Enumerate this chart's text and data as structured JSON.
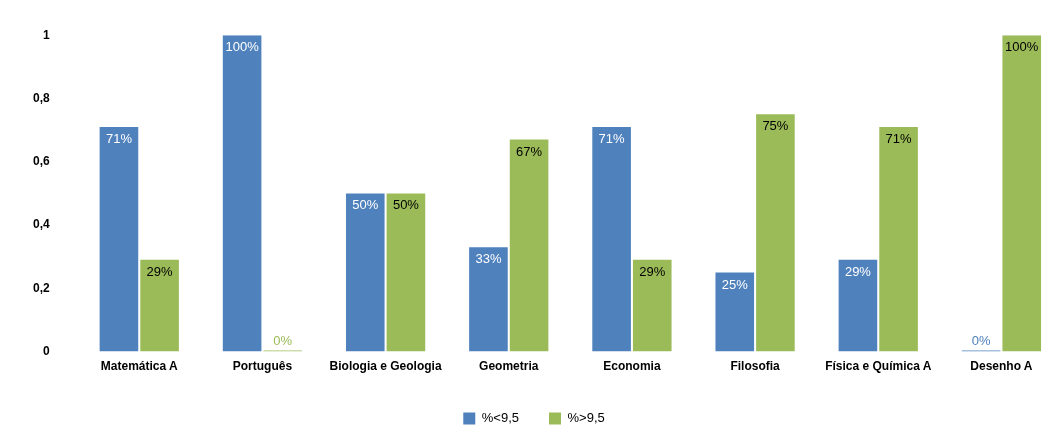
{
  "chart_data": {
    "type": "bar",
    "categories": [
      "Matemática A",
      "Português",
      "Biologia e Geologia",
      "Geometria",
      "Economia",
      "Filosofia",
      "Física e Química A",
      "Desenho A"
    ],
    "series": [
      {
        "name": "%<9,5",
        "color": "#4f81bd",
        "values": [
          0.71,
          1,
          0.5,
          0.33,
          0.71,
          0.25,
          0.29,
          0
        ],
        "value_labels": [
          "71%",
          "100%",
          "50%",
          "33%",
          "71%",
          "25%",
          "29%",
          "0%"
        ]
      },
      {
        "name": "%>9,5",
        "color": "#9bbb59",
        "values": [
          0.29,
          0,
          0.5,
          0.67,
          0.29,
          0.75,
          0.71,
          1
        ],
        "value_labels": [
          "29%",
          "0%",
          "50%",
          "67%",
          "29%",
          "75%",
          "71%",
          "100%"
        ]
      }
    ],
    "ylim": [
      0,
      1
    ],
    "yticks": [
      0,
      {
        "value": 0.2,
        "label": "0,2"
      },
      {
        "value": 0.4,
        "label": "0,4"
      },
      {
        "value": 0.6,
        "label": "0,6"
      },
      {
        "value": 0.8,
        "label": "0,8"
      },
      1
    ],
    "grid": false,
    "legend": "bottom"
  }
}
